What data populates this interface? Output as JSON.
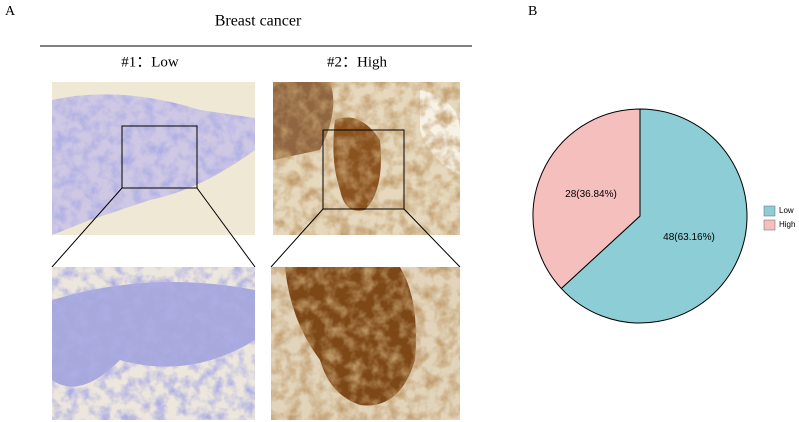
{
  "panel_a": {
    "label": "A",
    "title": "Breast cancer",
    "columns": [
      "#1：Low",
      "#2：High"
    ]
  },
  "chart_data": {
    "type": "pie",
    "panel_label": "B",
    "categories": [
      "Low",
      "High"
    ],
    "values": [
      48,
      28
    ],
    "value_labels": [
      "48(63.16%)",
      "28(36.84%)"
    ],
    "colors": [
      "#8ccdd6",
      "#f5bfbe"
    ],
    "legend": "right"
  }
}
